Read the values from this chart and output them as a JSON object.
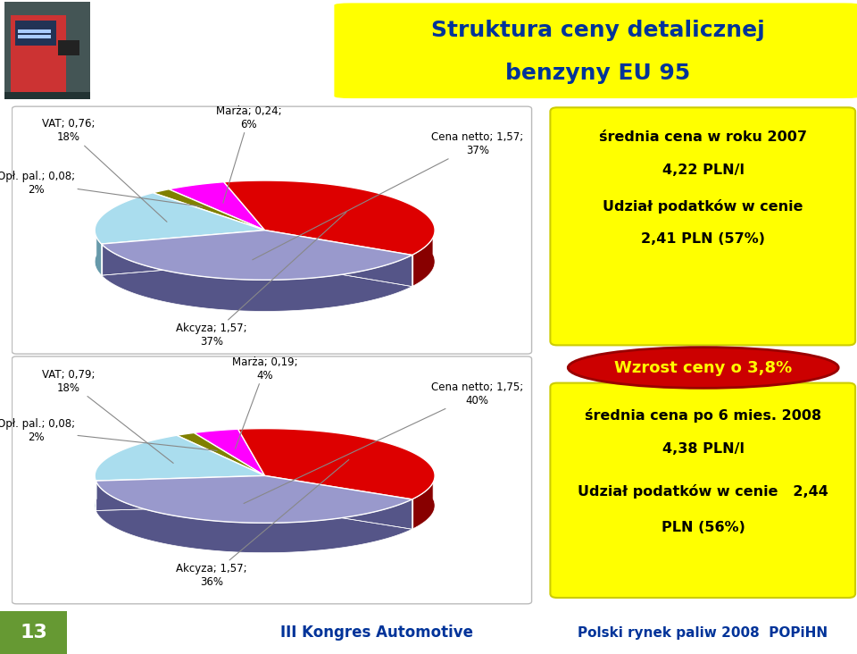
{
  "title_line1": "Struktura ceny detalicznej",
  "title_line2": "benzyny EU 95",
  "title_bg": "#FFFF00",
  "title_color": "#003399",
  "pie1_values": [
    1.57,
    0.76,
    0.08,
    0.24,
    1.57
  ],
  "pie1_pcts": [
    37,
    18,
    2,
    6,
    37
  ],
  "pie1_names": [
    "Cena netto",
    "VAT",
    "Opł. pal.",
    "Marża",
    "Akcyza"
  ],
  "pie1_vals_s": [
    "1,57",
    "0,76",
    "0,08",
    "0,24",
    "1,57"
  ],
  "pie1_colors": [
    "#9999CC",
    "#AADDEE",
    "#808000",
    "#FF00FF",
    "#DD0000"
  ],
  "pie1_dark": [
    "#555588",
    "#6699AA",
    "#404000",
    "#880088",
    "#880000"
  ],
  "pie2_values": [
    1.75,
    0.79,
    0.08,
    0.19,
    1.57
  ],
  "pie2_pcts": [
    40,
    18,
    2,
    4,
    36
  ],
  "pie2_names": [
    "Cena netto",
    "VAT",
    "Opł. pal.",
    "Marża",
    "Akcyza"
  ],
  "pie2_vals_s": [
    "1,75",
    "0,79",
    "0,08",
    "0,19",
    "1,57"
  ],
  "pie2_colors": [
    "#9999CC",
    "#AADDEE",
    "#808000",
    "#FF00FF",
    "#DD0000"
  ],
  "pie2_dark": [
    "#555588",
    "#6699AA",
    "#404000",
    "#880088",
    "#880000"
  ],
  "info1_lines": [
    "średnia cena w roku 2007",
    "4,22 PLN/l",
    "Udział podatków w cenie",
    "2,41 PLN (57%)"
  ],
  "info2_lines": [
    "średnia cena po 6 mies. 2008",
    "4,38 PLN/l",
    "Udział podatków w cenie   2,44",
    "PLN (56%)"
  ],
  "wzrost_text": "Wzrost ceny o 3,8%",
  "footer_num": "13",
  "footer_mid": "III Kongres Automotive",
  "footer_right": "Polski rynek paliw 2008  POPiHN",
  "header_green": "#8FAF6A",
  "side_green": "#8AAA65",
  "main_bg": "#FFFFFF",
  "panel_border": "#AAAAAA"
}
